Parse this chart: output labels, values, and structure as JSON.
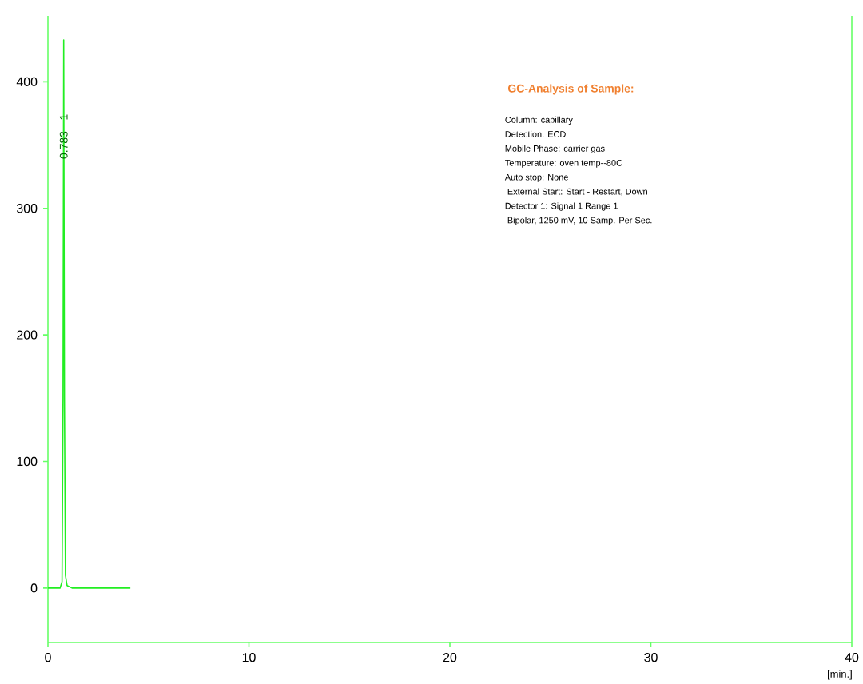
{
  "chart_data": {
    "type": "line",
    "title": "GC-Analysis of Sample:",
    "xlabel": "[min.]",
    "x": [
      0,
      0.6,
      0.7,
      0.75,
      0.783,
      0.82,
      0.87,
      0.95,
      1.2,
      4.1
    ],
    "series": [
      {
        "color": "#22ee22",
        "values": [
          0,
          0,
          5,
          150,
          433,
          150,
          10,
          2,
          0,
          0
        ]
      }
    ],
    "xlim": [
      0,
      40
    ],
    "xticks": [
      0,
      10,
      20,
      30,
      40
    ],
    "ylim": [
      -43,
      452
    ],
    "yticks": [
      0,
      100,
      200,
      300,
      400
    ],
    "grid": false,
    "marker": "none",
    "line_style": "solid",
    "annotations": [
      {
        "text": "0.783",
        "x": 0.783,
        "y": 350
      },
      {
        "text": "1",
        "x": 0.783,
        "y": 372
      },
      "Column: capillary",
      "Detection: ECD",
      "Mobile Phase: carrier gas",
      "Temperature: oven temp--80C",
      "Auto stop: None",
      " External Start: Start - Restart, Down",
      "Detector 1: Signal 1 Range 1",
      " Bipolar, 1250 mV, 10 Samp. Per Sec."
    ]
  }
}
